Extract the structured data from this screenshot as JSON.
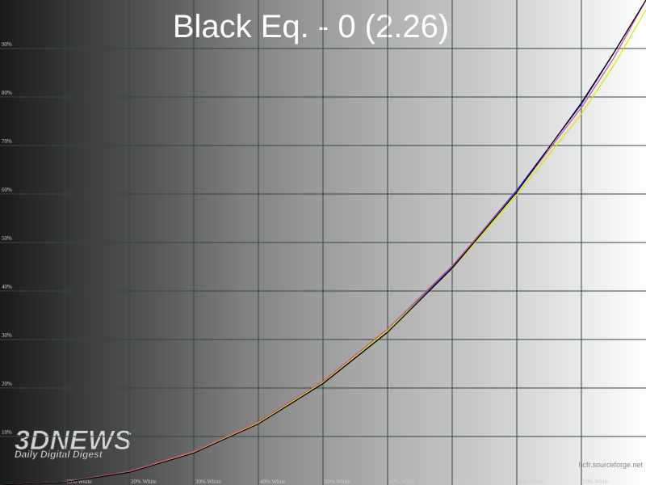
{
  "chart_data": {
    "type": "line",
    "title": "Black Eq. - 0 (2.26)",
    "x": [
      0,
      10,
      20,
      30,
      40,
      50,
      60,
      70,
      80,
      90,
      95,
      100
    ],
    "series": [
      {
        "color": "#2a2ad0",
        "values": [
          0,
          0.55,
          2.6,
          6.7,
          12.8,
          21.1,
          31.7,
          45,
          60.8,
          78.5,
          89,
          100
        ]
      },
      {
        "color": "#d8e800",
        "values": [
          0,
          0.6,
          2.7,
          6.8,
          12.8,
          21.2,
          31.8,
          44.6,
          59.8,
          76.5,
          86.5,
          98
        ]
      },
      {
        "color": "#d0508c",
        "values": [
          0,
          0.6,
          2.8,
          6.9,
          13,
          21.4,
          32.2,
          45.2,
          60.5,
          77.8,
          88,
          100
        ]
      },
      {
        "color": "#000000",
        "values": [
          0,
          0.55,
          2.6,
          6.6,
          12.6,
          20.9,
          31.5,
          44.7,
          60.4,
          78.8,
          89.1,
          100
        ]
      }
    ],
    "xlim": [
      0,
      100
    ],
    "ylim": [
      0,
      100
    ],
    "xticks": [
      {
        "value": 10,
        "label": "10% White"
      },
      {
        "value": 20,
        "label": "20% White"
      },
      {
        "value": 30,
        "label": "30% White"
      },
      {
        "value": 40,
        "label": "40% White"
      },
      {
        "value": 50,
        "label": "50% White"
      },
      {
        "value": 60,
        "label": "60% White"
      },
      {
        "value": 70,
        "label": "70% White"
      },
      {
        "value": 80,
        "label": "80% White"
      },
      {
        "value": 90,
        "label": "90% White"
      }
    ],
    "yticks": [
      {
        "value": 10,
        "label": "10%"
      },
      {
        "value": 20,
        "label": "20%"
      },
      {
        "value": 30,
        "label": "30%"
      },
      {
        "value": 40,
        "label": "40%"
      },
      {
        "value": 50,
        "label": "50%"
      },
      {
        "value": 60,
        "label": "60%"
      },
      {
        "value": 70,
        "label": "70%"
      },
      {
        "value": 80,
        "label": "80%"
      },
      {
        "value": 90,
        "label": "90%"
      }
    ],
    "grid": true
  },
  "watermark": {
    "logo": "3DNEWS",
    "tagline": "Daily Digital Digest",
    "source": "hcfr.sourceforge.net"
  }
}
